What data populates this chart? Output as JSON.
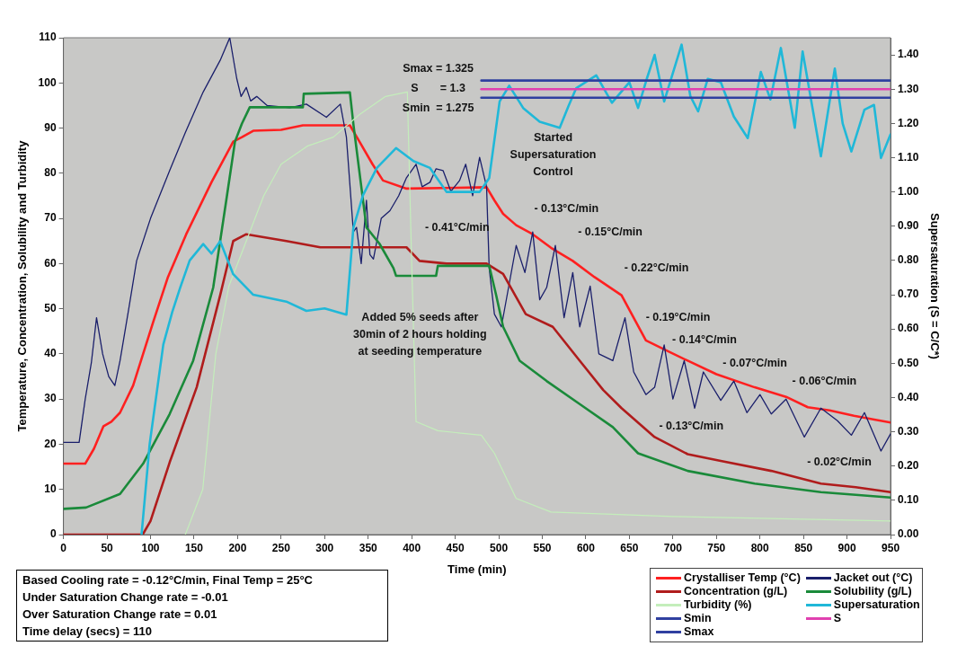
{
  "chart_data": {
    "type": "line",
    "xlabel": "Time (min)",
    "ylabel": "Temperature, Concentration, Solubility and Turbidity",
    "y2label": "Supersaturation (S = C/C*)",
    "xlim": [
      0,
      950
    ],
    "xticks": [
      0,
      50,
      100,
      150,
      200,
      250,
      300,
      350,
      400,
      450,
      500,
      550,
      600,
      650,
      700,
      750,
      800,
      850,
      900,
      950
    ],
    "ylim": [
      0,
      110
    ],
    "yticks": [
      0,
      10,
      20,
      30,
      40,
      50,
      60,
      70,
      80,
      90,
      100,
      110
    ],
    "y2lim": [
      0,
      1.45
    ],
    "y2ticks": [
      {
        "value": 0,
        "label": "0.00"
      },
      {
        "value": 0.1,
        "label": "0.10"
      },
      {
        "value": 0.2,
        "label": "0.20"
      },
      {
        "value": 0.3,
        "label": "0.30"
      },
      {
        "value": 0.4,
        "label": "0.40"
      },
      {
        "value": 0.5,
        "label": "0.50"
      },
      {
        "value": 0.6,
        "label": "0.60"
      },
      {
        "value": 0.7,
        "label": "0.70"
      },
      {
        "value": 0.8,
        "label": "0.80"
      },
      {
        "value": 0.9,
        "label": "0.90"
      },
      {
        "value": 1,
        "label": "1.00"
      },
      {
        "value": 1.1,
        "label": "1.10"
      },
      {
        "value": 1.2,
        "label": "1.20"
      },
      {
        "value": 1.3,
        "label": "1.30"
      },
      {
        "value": 1.4,
        "label": "1.40"
      }
    ],
    "legend": "bottom right",
    "marker": "none",
    "line_style": "solid",
    "series": [
      {
        "name": "Crystalliser Temp (°C)",
        "color": "#ff2020",
        "x": [
          0,
          25,
          35,
          46,
          55,
          65,
          80,
          103,
          120,
          141,
          170,
          195,
          205,
          218,
          250,
          275,
          329,
          340,
          355,
          367,
          394,
          486,
          495,
          505,
          520,
          539,
          560,
          585,
          610,
          641,
          669,
          690,
          717,
          750,
          794,
          830,
          855,
          880,
          908,
          930,
          950
        ],
        "values": [
          15.7,
          15.7,
          19,
          24,
          25,
          27,
          33,
          47,
          57,
          66.5,
          78,
          87,
          88,
          89.4,
          89.6,
          90.6,
          90.6,
          87,
          82,
          78.4,
          76.6,
          76.9,
          74,
          71,
          68.5,
          66.5,
          63.5,
          60.6,
          57,
          53,
          43,
          41,
          38.5,
          35.5,
          32.6,
          30.5,
          28.2,
          27.5,
          26.3,
          25.5,
          24.8
        ]
      },
      {
        "name": "Jacket out (°C)",
        "color": "#1a1f6b",
        "x": [
          0,
          18,
          25,
          32,
          38,
          45,
          52,
          59,
          65,
          75,
          84,
          100,
          122,
          140,
          160.5,
          180,
          191,
          199,
          204,
          210,
          215,
          222,
          234,
          260,
          279,
          302,
          318,
          325,
          333,
          336.6,
          342,
          348,
          352,
          356,
          365,
          375,
          385,
          394,
          405,
          412,
          421,
          428,
          436,
          445,
          455,
          462,
          470,
          478,
          486,
          489,
          495,
          503,
          520,
          530,
          539,
          547,
          555,
          565,
          575,
          585,
          593,
          605,
          615,
          631,
          645,
          655,
          669,
          679,
          690,
          700,
          713,
          725,
          735,
          755,
          770,
          785,
          800,
          813,
          830,
          851,
          870,
          889,
          905,
          920,
          939,
          950
        ],
        "values": [
          20.4,
          20.4,
          30,
          38,
          48,
          40,
          35,
          33,
          38.5,
          50,
          60.6,
          70,
          80.6,
          89,
          98,
          105,
          110,
          101,
          97,
          99,
          96,
          97,
          95,
          94.5,
          95.3,
          92.4,
          95.3,
          88,
          67,
          68,
          60,
          74,
          62,
          61,
          70,
          71.7,
          75,
          79,
          82,
          77,
          78,
          81,
          80.6,
          76,
          78.4,
          82,
          75,
          83.5,
          77,
          59,
          48.8,
          46,
          64,
          58,
          67,
          52,
          54.7,
          64,
          48,
          58,
          46,
          55,
          40,
          38.5,
          48,
          36,
          31,
          32.6,
          42,
          30,
          38.5,
          28,
          36,
          29.7,
          34,
          27,
          31,
          26.7,
          30,
          21.6,
          28,
          25.2,
          22,
          27,
          18.5,
          22.3
        ]
      },
      {
        "name": "Concentration (g/L)",
        "color": "#b01c1c",
        "x": [
          0,
          91,
          100,
          122,
          153,
          180,
          195,
          210,
          256,
          295,
          333,
          363,
          394,
          409,
          440,
          486,
          505,
          531,
          562,
          593,
          620,
          641,
          679,
          717,
          755,
          813,
          870,
          910,
          950
        ],
        "values": [
          0,
          0,
          3,
          16,
          32.6,
          53,
          65,
          66.5,
          65,
          63.6,
          63.6,
          63.6,
          63.6,
          60.6,
          60,
          60,
          57.7,
          48.8,
          46,
          38.5,
          32,
          28,
          21.6,
          17.8,
          16.3,
          14.1,
          11.3,
          10.5,
          9.4
        ]
      },
      {
        "name": "Solubility (g/L)",
        "color": "#1a8a3a",
        "x": [
          0,
          26,
          65,
          91.5,
          122,
          149,
          172,
          187,
          197,
          205,
          214,
          275,
          276,
          329,
          333,
          348,
          363,
          379,
          382,
          428,
          430,
          489,
          497,
          505,
          524,
          555,
          593,
          631,
          660,
          717,
          794,
          870,
          950
        ],
        "values": [
          5.7,
          6,
          9,
          15.7,
          26.7,
          38.5,
          54.7,
          74,
          87,
          91,
          94.6,
          94.6,
          97.6,
          97.9,
          90.9,
          68,
          64.4,
          59,
          57.3,
          57.3,
          59.5,
          59.5,
          53,
          46,
          38.5,
          34,
          28.9,
          23.8,
          18,
          14.1,
          11.3,
          9.4,
          8.2
        ]
      },
      {
        "name": "Turbidity (%)",
        "color": "#c4eebb",
        "x": [
          140,
          160,
          175,
          190,
          210,
          230,
          250,
          280,
          310,
          340,
          370,
          395,
          400,
          405,
          430,
          480,
          495,
          520,
          560,
          700,
          950
        ],
        "values": [
          0,
          10,
          40,
          55,
          65,
          75,
          82,
          86,
          88,
          93,
          97,
          98,
          60,
          25,
          23,
          22,
          18,
          8,
          5,
          4,
          3
        ]
      },
      {
        "name": "Supersaturation",
        "color": "#20b8d8",
        "axis": "y2",
        "x": [
          89.7,
          99,
          114.7,
          125,
          134,
          145,
          160.5,
          170,
          180,
          195,
          218,
          256,
          279,
          300,
          325,
          333,
          344,
          360,
          382,
          402,
          421,
          440,
          478,
          489,
          501,
          512,
          528,
          547,
          570,
          580,
          589,
          612,
          630,
          650,
          660,
          670,
          679,
          690,
          710,
          720,
          729,
          740,
          755,
          770,
          786,
          801,
          812,
          824,
          840,
          849,
          860,
          870,
          886,
          895,
          905,
          920,
          931,
          939,
          950
        ],
        "values": [
          0,
          0.264,
          0.555,
          0.65,
          0.72,
          0.8,
          0.848,
          0.82,
          0.856,
          0.76,
          0.7,
          0.68,
          0.653,
          0.66,
          0.642,
          0.896,
          0.99,
          1.07,
          1.128,
          1.09,
          1.07,
          1.0,
          1.0,
          1.04,
          1.264,
          1.31,
          1.245,
          1.205,
          1.187,
          1.25,
          1.303,
          1.34,
          1.26,
          1.32,
          1.245,
          1.33,
          1.4,
          1.264,
          1.43,
          1.28,
          1.235,
          1.33,
          1.32,
          1.22,
          1.157,
          1.35,
          1.27,
          1.42,
          1.187,
          1.41,
          1.25,
          1.104,
          1.36,
          1.2,
          1.118,
          1.24,
          1.254,
          1.099,
          1.168
        ]
      },
      {
        "name": "Smin",
        "color": "#3040a0",
        "axis": "y2",
        "x": [
          480,
          950
        ],
        "values": [
          1.275,
          1.275
        ]
      },
      {
        "name": "S",
        "color": "#e040b0",
        "axis": "y2",
        "x": [
          480,
          950
        ],
        "values": [
          1.3,
          1.3
        ]
      },
      {
        "name": "Smax",
        "color": "#3040a0",
        "axis": "y2",
        "x": [
          480,
          950
        ],
        "values": [
          1.325,
          1.325
        ]
      }
    ],
    "annotations": [
      "Smax = 1.325",
      "S       = 1.3",
      "Smin  = 1.275",
      "Started\nSupersaturation\nControl",
      "Added 5% seeds after\n30min of 2 hours holding\nat seeding temperature",
      "- 0.41°C/min",
      "- 0.13°C/min",
      "- 0.15°C/min",
      "- 0.22°C/min",
      "- 0.19°C/min",
      "- 0.14°C/min",
      "- 0.07°C/min",
      "- 0.06°C/min",
      "- 0.13°C/min",
      "- 0.02°C/min",
      "Based Cooling rate = -0.12°C/min, Final Temp = 25°C",
      "Under Saturation Change rate = -0.01",
      "Over Saturation Change rate = 0.01",
      "Time delay (secs) = 110"
    ]
  }
}
